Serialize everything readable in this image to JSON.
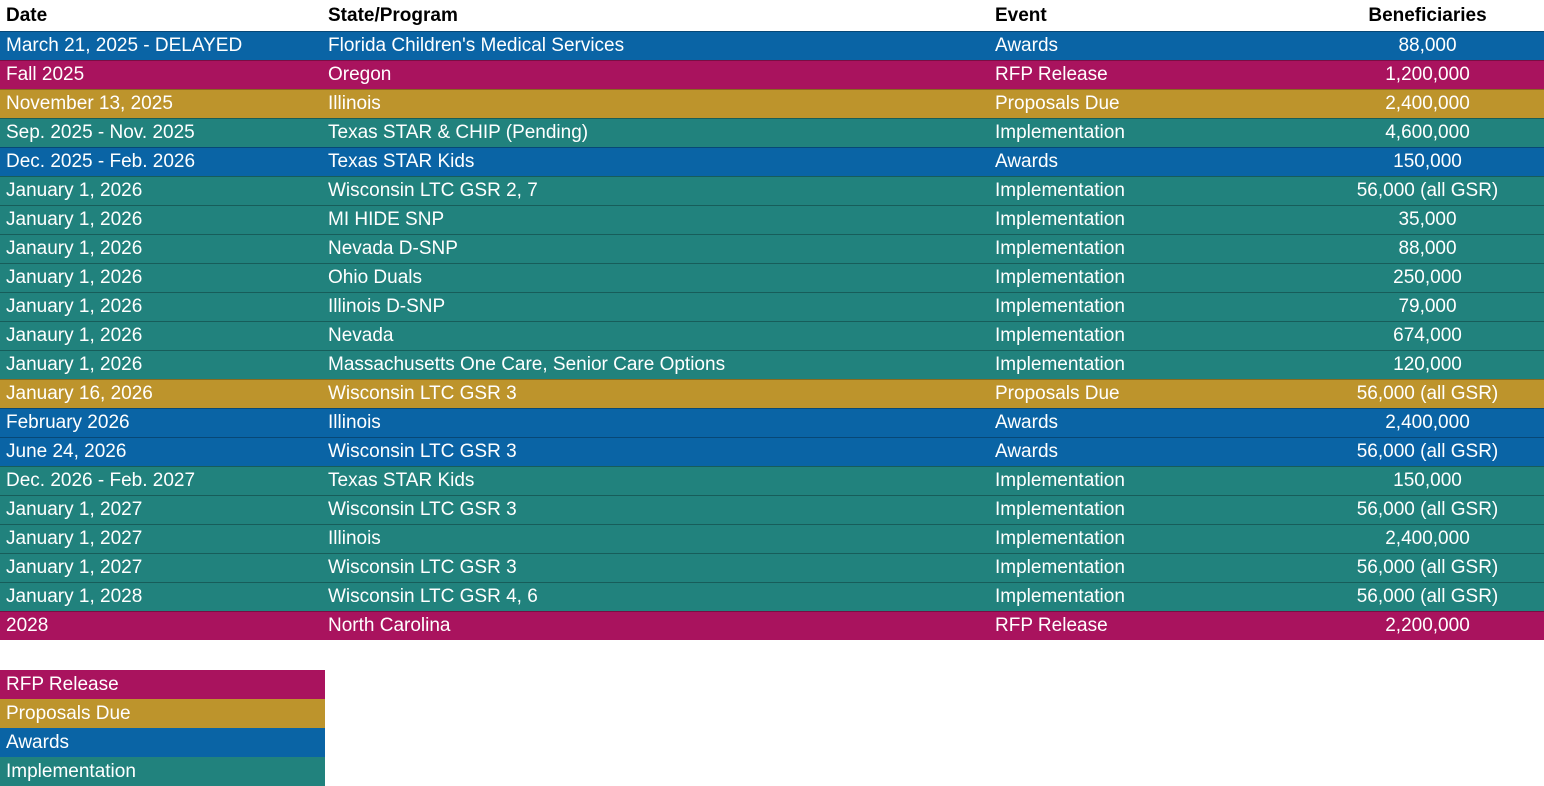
{
  "chart_data": {
    "type": "table",
    "title": "",
    "columns": [
      "Date",
      "State/Program",
      "Event",
      "Beneficiaries"
    ],
    "row_color_coding": "rows are filled by event category, see legend",
    "category_colors": {
      "rfp_release": "#A9135E",
      "proposals_due": "#BD942C",
      "awards": "#0A64A5",
      "implementation": "#21827D"
    },
    "rows": [
      {
        "date": "March 21, 2025 - DELAYED",
        "program": "Florida Children's Medical Services",
        "event": "Awards",
        "beneficiaries": "88,000",
        "category": "awards"
      },
      {
        "date": "Fall 2025",
        "program": "Oregon",
        "event": "RFP Release",
        "beneficiaries": "1,200,000",
        "category": "rfp_release"
      },
      {
        "date": "November 13, 2025",
        "program": "Illinois",
        "event": "Proposals Due",
        "beneficiaries": "2,400,000",
        "category": "proposals_due"
      },
      {
        "date": "Sep. 2025 - Nov. 2025",
        "program": "Texas STAR & CHIP (Pending)",
        "event": "Implementation",
        "beneficiaries": "4,600,000",
        "category": "implementation"
      },
      {
        "date": "Dec. 2025 - Feb. 2026",
        "program": "Texas STAR Kids",
        "event": "Awards",
        "beneficiaries": "150,000",
        "category": "awards"
      },
      {
        "date": "January 1, 2026",
        "program": "Wisconsin LTC GSR 2, 7",
        "event": "Implementation",
        "beneficiaries": "56,000 (all GSR)",
        "category": "implementation"
      },
      {
        "date": "January 1, 2026",
        "program": "MI HIDE SNP",
        "event": "Implementation",
        "beneficiaries": "35,000",
        "category": "implementation"
      },
      {
        "date": "Janaury 1, 2026",
        "program": "Nevada D-SNP",
        "event": "Implementation",
        "beneficiaries": "88,000",
        "category": "implementation"
      },
      {
        "date": "January 1, 2026",
        "program": "Ohio Duals",
        "event": "Implementation",
        "beneficiaries": "250,000",
        "category": "implementation"
      },
      {
        "date": "January 1, 2026",
        "program": "Illinois D-SNP",
        "event": "Implementation",
        "beneficiaries": "79,000",
        "category": "implementation"
      },
      {
        "date": "Janaury 1, 2026",
        "program": "Nevada",
        "event": "Implementation",
        "beneficiaries": "674,000",
        "category": "implementation"
      },
      {
        "date": "January 1, 2026",
        "program": "Massachusetts One Care, Senior Care Options",
        "event": "Implementation",
        "beneficiaries": "120,000",
        "category": "implementation"
      },
      {
        "date": "January 16, 2026",
        "program": "Wisconsin LTC GSR 3",
        "event": "Proposals Due",
        "beneficiaries": "56,000 (all GSR)",
        "category": "proposals_due"
      },
      {
        "date": "February 2026",
        "program": "Illinois",
        "event": "Awards",
        "beneficiaries": "2,400,000",
        "category": "awards"
      },
      {
        "date": "June 24, 2026",
        "program": "Wisconsin LTC GSR 3",
        "event": "Awards",
        "beneficiaries": "56,000 (all GSR)",
        "category": "awards"
      },
      {
        "date": "Dec. 2026 - Feb. 2027",
        "program": "Texas STAR Kids",
        "event": "Implementation",
        "beneficiaries": "150,000",
        "category": "implementation"
      },
      {
        "date": "January 1, 2027",
        "program": "Wisconsin LTC GSR 3",
        "event": "Implementation",
        "beneficiaries": "56,000 (all GSR)",
        "category": "implementation"
      },
      {
        "date": "January 1, 2027",
        "program": "Illinois",
        "event": "Implementation",
        "beneficiaries": "2,400,000",
        "category": "implementation"
      },
      {
        "date": "January 1, 2027",
        "program": "Wisconsin LTC GSR 3",
        "event": "Implementation",
        "beneficiaries": "56,000 (all GSR)",
        "category": "implementation"
      },
      {
        "date": "January 1, 2028",
        "program": "Wisconsin LTC GSR 4, 6",
        "event": "Implementation",
        "beneficiaries": "56,000 (all GSR)",
        "category": "implementation"
      },
      {
        "date": "2028",
        "program": "North Carolina",
        "event": "RFP Release",
        "beneficiaries": "2,200,000",
        "category": "rfp_release"
      }
    ],
    "legend": [
      {
        "label": "RFP Release",
        "category": "rfp_release"
      },
      {
        "label": "Proposals Due",
        "category": "proposals_due"
      },
      {
        "label": "Awards",
        "category": "awards"
      },
      {
        "label": "Implementation",
        "category": "implementation"
      }
    ],
    "layout": {
      "legend_position": "bottom-left",
      "header_text_color": "#000000",
      "row_text_color": "#FFFFFF",
      "background": "#FFFFFF"
    }
  }
}
